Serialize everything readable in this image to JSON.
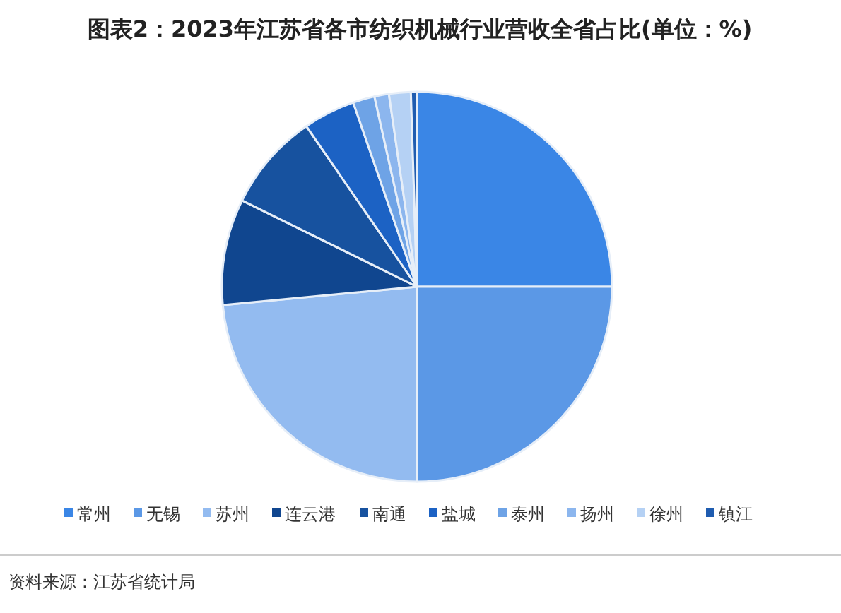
{
  "chart_data": {
    "type": "pie",
    "title": "图表2：2023年江苏省各市纺织机械行业营收全省占比(单位：%)",
    "categories": [
      "常州",
      "无锡",
      "苏州",
      "连云港",
      "南通",
      "盐城",
      "泰州",
      "扬州",
      "徐州",
      "镇江"
    ],
    "values": [
      25,
      25,
      23.5,
      8.8,
      8.1,
      4.3,
      1.8,
      1.2,
      1.8,
      0.5
    ],
    "colors": [
      "#3a86e6",
      "#5b98e6",
      "#93bbf0",
      "#10468f",
      "#17529f",
      "#1c62c4",
      "#6ea3e6",
      "#8cb6ee",
      "#b5d1f4",
      "#1f5cb0"
    ],
    "legend": "bottom",
    "annotations": [
      "资料来源：江苏省统计局"
    ]
  }
}
